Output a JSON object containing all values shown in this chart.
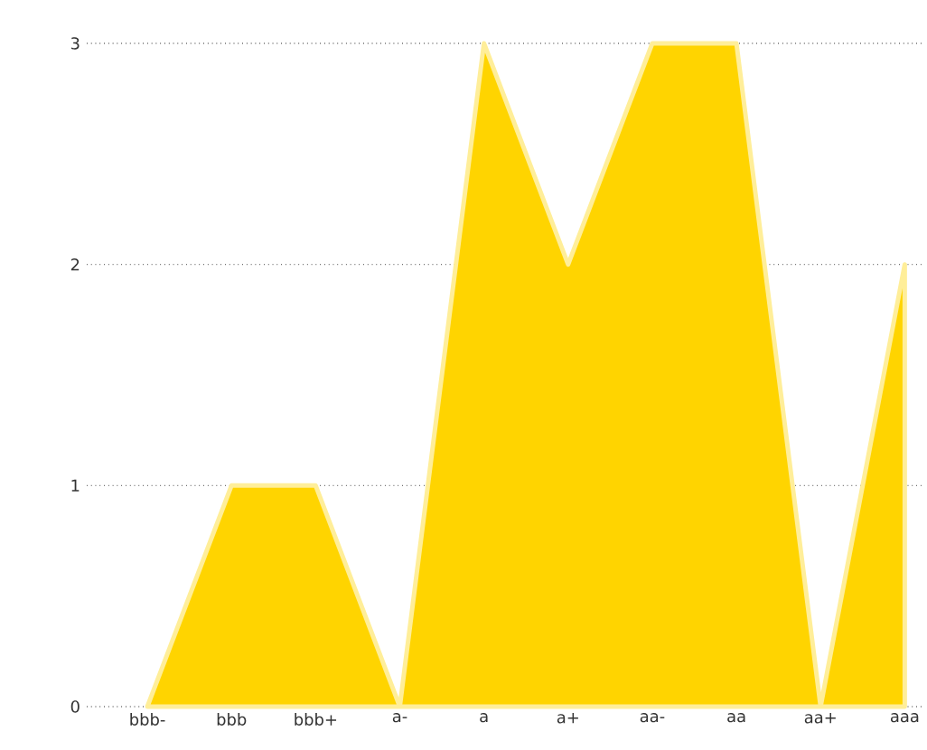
{
  "chart_data": {
    "type": "area",
    "categories": [
      "bbb-",
      "bbb",
      "bbb+",
      "a-",
      "a",
      "a+",
      "aa-",
      "aa",
      "aa+",
      "aaa"
    ],
    "series": [
      {
        "color": "#ffd400",
        "values": [
          0,
          1,
          1,
          0,
          3,
          2,
          3,
          3,
          0,
          2
        ]
      }
    ],
    "ylim": [
      0,
      3
    ],
    "yticks": [
      0,
      1,
      2,
      3
    ],
    "grid": "y"
  }
}
